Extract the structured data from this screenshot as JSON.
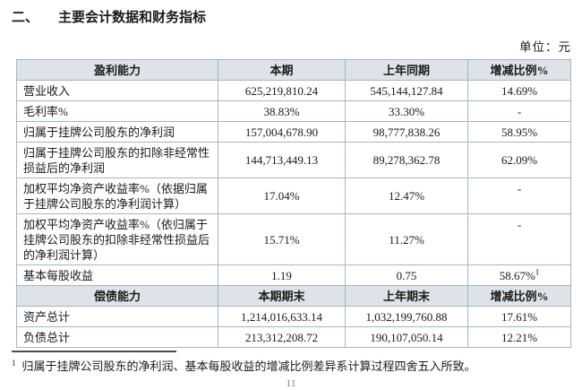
{
  "document": {
    "section_number": "二、",
    "title": "主要会计数据和财务指标",
    "unit_label": "单位：元"
  },
  "table": {
    "sections": [
      {
        "header": [
          "盈利能力",
          "本期",
          "上年同期",
          "增减比例%"
        ],
        "rows": [
          {
            "label": "营业收入",
            "current": "625,219,810.24",
            "prior": "545,144,127.84",
            "change": "14.69%"
          },
          {
            "label": "毛利率%",
            "current": "38.83%",
            "prior": "33.30%",
            "change": "-"
          },
          {
            "label": "归属于挂牌公司股东的净利润",
            "current": "157,004,678.90",
            "prior": "98,777,838.26",
            "change": "58.95%"
          },
          {
            "label": "归属于挂牌公司股东的扣除非经常性损益后的净利润",
            "current": "144,713,449.13",
            "prior": "89,278,362.78",
            "change": "62.09%"
          },
          {
            "label": "加权平均净资产收益率%（依据归属于挂牌公司股东的净利润计算）",
            "current": "17.04%",
            "prior": "12.47%",
            "change": "-",
            "change_align_top": true
          },
          {
            "label": "加权平均净资产收益率%（依归属于挂牌公司股东的扣除非经常性损益后的净利润计算）",
            "current": "15.71%",
            "prior": "11.27%",
            "change": "-",
            "change_align_top": true
          },
          {
            "label": "基本每股收益",
            "current": "1.19",
            "prior": "0.75",
            "change": "58.67%",
            "change_superscript": "1"
          }
        ]
      },
      {
        "header": [
          "偿债能力",
          "本期期末",
          "上年期末",
          "增减比例%"
        ],
        "rows": [
          {
            "label": "资产总计",
            "current": "1,214,016,633.14",
            "prior": "1,032,199,760.88",
            "change": "17.61%"
          },
          {
            "label": "负债总计",
            "current": "213,312,208.72",
            "prior": "190,107,050.14",
            "change": "12.21%"
          }
        ]
      }
    ]
  },
  "footnote": {
    "marker": "1",
    "text": "归属于挂牌公司股东的净利润、基本每股收益的增减比例差异系计算过程四舍五入所致。"
  },
  "page_number": "11",
  "colors": {
    "header_bg": "#dde3e8",
    "border": "#a2b6c5",
    "text": "#1a1a1a"
  }
}
